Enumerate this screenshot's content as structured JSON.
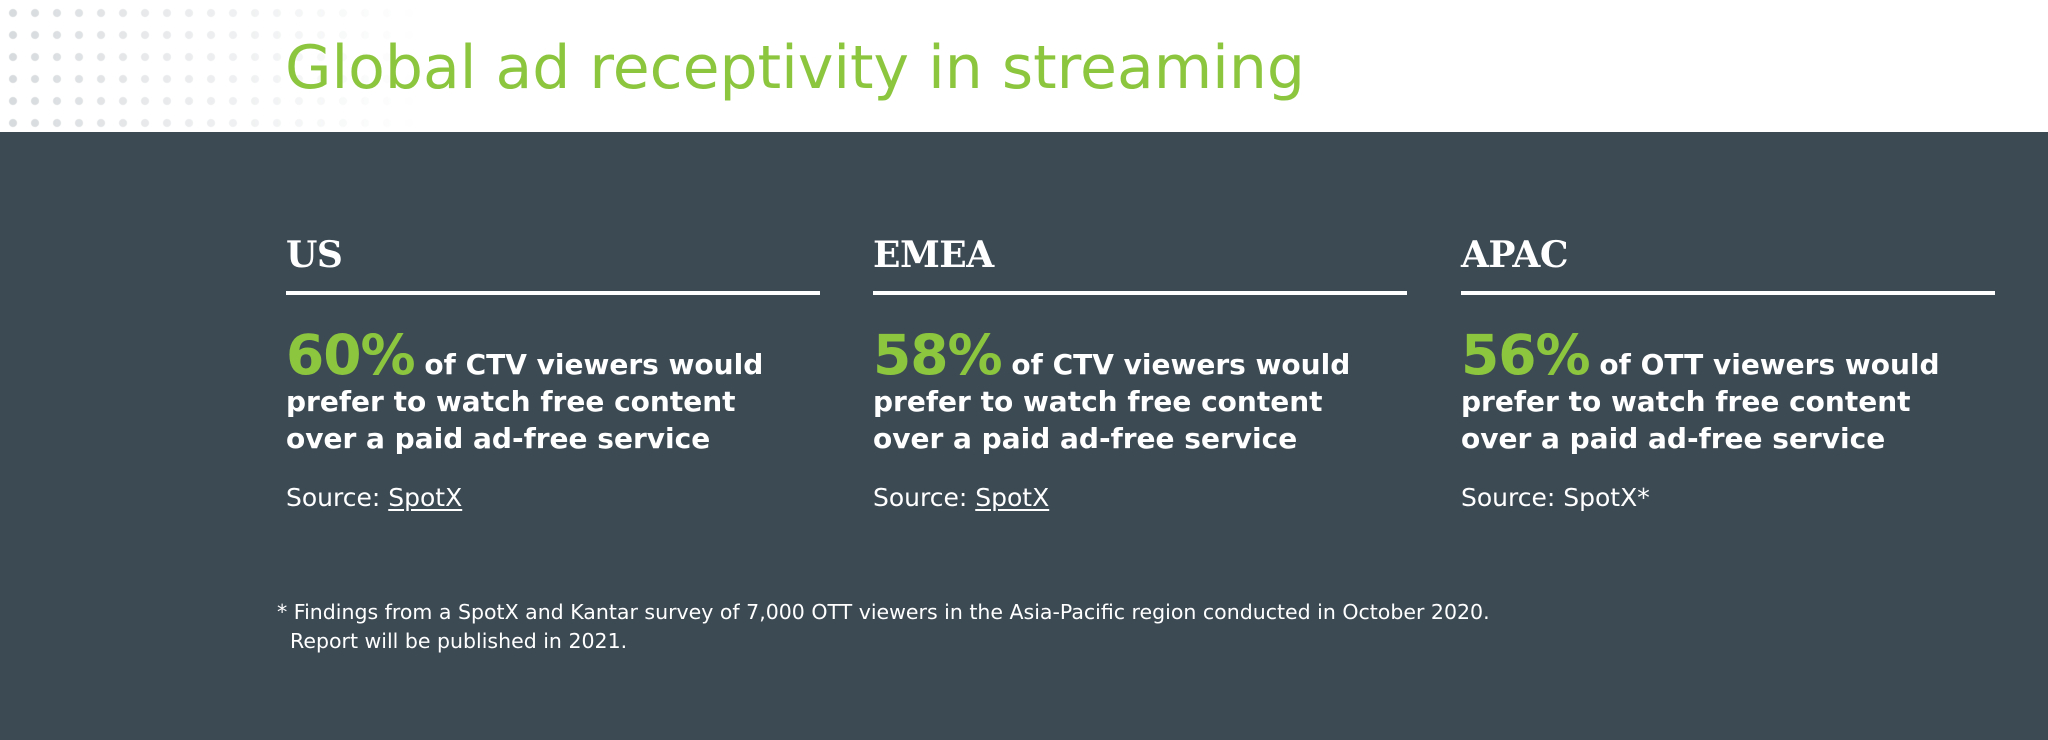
{
  "title": "Global ad receptivity in streaming",
  "regions": [
    {
      "name": "US",
      "percent": "60%",
      "lines": [
        "of CTV viewers would",
        "prefer to watch free content",
        "over a paid ad-free service"
      ],
      "source_label": "Source:",
      "source_link": "SpotX"
    },
    {
      "name": "EMEA",
      "percent": "58%",
      "lines": [
        "of CTV viewers would",
        "prefer to watch free content",
        "over a paid ad-free service"
      ],
      "source_label": "Source:",
      "source_link": "SpotX"
    },
    {
      "name": "APAC",
      "percent": "56%",
      "lines": [
        "of OTT viewers would",
        "prefer to watch free content",
        "over a paid ad-free service"
      ],
      "source_label": "Source:",
      "source_text": "SpotX*"
    }
  ],
  "footnote": {
    "line1": "* Findings from a SpotX and Kantar survey of 7,000 OTT viewers in the Asia-Pacific region conducted in October 2020.",
    "line2": "  Report will be published in 2021."
  },
  "colors": {
    "accent": "#8cc63f",
    "panel": "#3c4a54",
    "text": "#ffffff"
  }
}
